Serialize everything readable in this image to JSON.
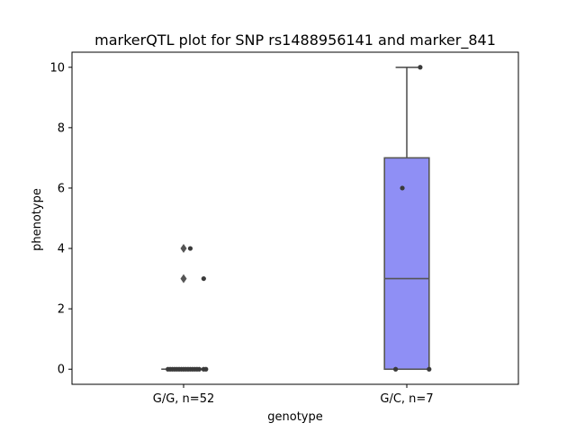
{
  "chart_data": {
    "type": "box",
    "title": "markerQTL plot for SNP rs1488956141 and marker_841",
    "xlabel": "genotype",
    "ylabel": "phenotype",
    "ylim": [
      -0.5,
      10.5
    ],
    "yticks": [
      0,
      2,
      4,
      6,
      8,
      10
    ],
    "grid": false,
    "categories": [
      "G/G, n=52",
      "G/C, n=7"
    ],
    "boxes": [
      {
        "category": "G/G, n=52",
        "q1": 0,
        "median": 0,
        "q3": 0,
        "whisker_low": 0,
        "whisker_high": 0,
        "fliers": [
          4,
          3
        ],
        "color": "#8f8ff5",
        "points": [
          {
            "x_offset": -0.07,
            "y": 0
          },
          {
            "x_offset": -0.06,
            "y": 0
          },
          {
            "x_offset": -0.05,
            "y": 0
          },
          {
            "x_offset": -0.04,
            "y": 0
          },
          {
            "x_offset": -0.03,
            "y": 0
          },
          {
            "x_offset": -0.02,
            "y": 0
          },
          {
            "x_offset": -0.01,
            "y": 0
          },
          {
            "x_offset": 0.0,
            "y": 0
          },
          {
            "x_offset": 0.01,
            "y": 0
          },
          {
            "x_offset": 0.02,
            "y": 0
          },
          {
            "x_offset": 0.03,
            "y": 0
          },
          {
            "x_offset": 0.04,
            "y": 0
          },
          {
            "x_offset": 0.05,
            "y": 0
          },
          {
            "x_offset": 0.06,
            "y": 0
          },
          {
            "x_offset": 0.07,
            "y": 0
          },
          {
            "x_offset": 0.09,
            "y": 0
          },
          {
            "x_offset": 0.1,
            "y": 0
          },
          {
            "x_offset": 0.03,
            "y": 4
          },
          {
            "x_offset": 0.09,
            "y": 3
          }
        ]
      },
      {
        "category": "G/C, n=7",
        "q1": 0,
        "median": 3,
        "q3": 7,
        "whisker_low": 0,
        "whisker_high": 10,
        "fliers": [],
        "color": "#8f8ff5",
        "points": [
          {
            "x_offset": 0.06,
            "y": 10
          },
          {
            "x_offset": -0.02,
            "y": 6
          },
          {
            "x_offset": -0.05,
            "y": 0
          },
          {
            "x_offset": 0.1,
            "y": 0
          }
        ]
      }
    ]
  }
}
